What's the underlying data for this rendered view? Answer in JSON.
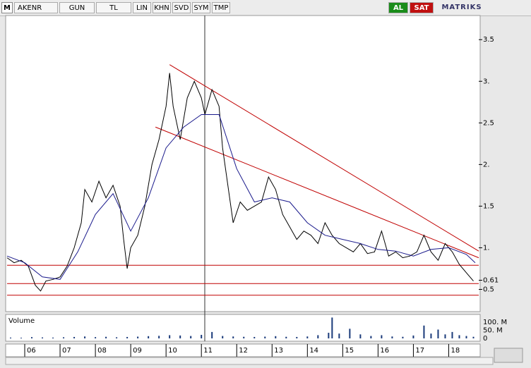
{
  "toolbar": {
    "logo": "M",
    "symbol": "AKENR",
    "buttons": [
      "GUN",
      "TL",
      "LIN",
      "KHN",
      "SVD",
      "SYM",
      "TMP"
    ],
    "buy": "AL",
    "sell": "SAT",
    "brand": "MATRIKS"
  },
  "chart_data": {
    "type": "line",
    "xlim": [
      2005.5,
      2018.85
    ],
    "xticks": [
      {
        "value": 2006,
        "label": "06"
      },
      {
        "value": 2007,
        "label": "07"
      },
      {
        "value": 2008,
        "label": "08"
      },
      {
        "value": 2009,
        "label": "09"
      },
      {
        "value": 2010,
        "label": "10"
      },
      {
        "value": 2011,
        "label": "11"
      },
      {
        "value": 2012,
        "label": "12"
      },
      {
        "value": 2013,
        "label": "13"
      },
      {
        "value": 2014,
        "label": "14"
      },
      {
        "value": 2015,
        "label": "15"
      },
      {
        "value": 2016,
        "label": "16"
      },
      {
        "value": 2017,
        "label": "17"
      },
      {
        "value": 2018,
        "label": "18"
      }
    ],
    "ylim": [
      0.25,
      3.79
    ],
    "yticks": [
      0.5,
      0.61,
      {
        "value": 1,
        "label": "1."
      },
      1.5,
      {
        "value": 2,
        "label": "2."
      },
      2.5,
      {
        "value": 3,
        "label": "3."
      },
      3.5
    ],
    "series": [
      {
        "color": "#000000",
        "x": [
          2005.5,
          2005.7,
          2005.9,
          2006.1,
          2006.3,
          2006.45,
          2006.6,
          2006.8,
          2007.0,
          2007.2,
          2007.4,
          2007.6,
          2007.7,
          2007.9,
          2008.1,
          2008.3,
          2008.5,
          2008.7,
          2008.8,
          2008.9,
          2009.0,
          2009.2,
          2009.4,
          2009.6,
          2009.8,
          2010.0,
          2010.1,
          2010.2,
          2010.3,
          2010.4,
          2010.6,
          2010.8,
          2011.0,
          2011.1,
          2011.3,
          2011.5,
          2011.6,
          2011.8,
          2011.9,
          2012.1,
          2012.3,
          2012.5,
          2012.7,
          2012.9,
          2013.1,
          2013.3,
          2013.5,
          2013.7,
          2013.9,
          2014.1,
          2014.3,
          2014.5,
          2014.7,
          2014.9,
          2015.1,
          2015.3,
          2015.5,
          2015.7,
          2015.9,
          2016.1,
          2016.3,
          2016.5,
          2016.7,
          2016.9,
          2017.1,
          2017.3,
          2017.5,
          2017.7,
          2017.9,
          2018.1,
          2018.3,
          2018.5,
          2018.7
        ],
        "values": [
          0.88,
          0.82,
          0.85,
          0.78,
          0.55,
          0.48,
          0.6,
          0.62,
          0.65,
          0.78,
          1.0,
          1.3,
          1.7,
          1.55,
          1.8,
          1.6,
          1.75,
          1.5,
          1.1,
          0.75,
          1.0,
          1.15,
          1.5,
          2.0,
          2.3,
          2.7,
          3.1,
          2.7,
          2.5,
          2.3,
          2.8,
          3.0,
          2.8,
          2.6,
          2.9,
          2.7,
          2.2,
          1.6,
          1.3,
          1.55,
          1.45,
          1.5,
          1.55,
          1.85,
          1.7,
          1.4,
          1.25,
          1.1,
          1.2,
          1.15,
          1.05,
          1.3,
          1.15,
          1.05,
          1.0,
          0.95,
          1.05,
          0.93,
          0.95,
          1.2,
          0.9,
          0.95,
          0.88,
          0.9,
          0.95,
          1.15,
          0.95,
          0.85,
          1.05,
          0.95,
          0.8,
          0.7,
          0.6
        ]
      },
      {
        "color": "#1a1a8c",
        "x": [
          2005.5,
          2006.0,
          2006.5,
          2007.0,
          2007.5,
          2008.0,
          2008.5,
          2009.0,
          2009.5,
          2010.0,
          2010.5,
          2011.0,
          2011.5,
          2012.0,
          2012.5,
          2013.0,
          2013.5,
          2014.0,
          2014.5,
          2015.0,
          2015.5,
          2016.0,
          2016.5,
          2017.0,
          2017.5,
          2018.0,
          2018.5,
          2018.75
        ],
        "values": [
          0.9,
          0.82,
          0.65,
          0.62,
          0.95,
          1.4,
          1.65,
          1.2,
          1.6,
          2.2,
          2.45,
          2.6,
          2.6,
          1.95,
          1.55,
          1.6,
          1.55,
          1.3,
          1.15,
          1.1,
          1.05,
          0.98,
          0.96,
          0.9,
          0.98,
          1.0,
          0.92,
          0.82
        ]
      }
    ],
    "hlines": [
      0.79,
      0.57,
      0.43
    ],
    "trendlines": [
      {
        "x": [
          2010.1,
          2018.85
        ],
        "y": [
          3.2,
          0.96
        ]
      },
      {
        "x": [
          2009.7,
          2018.85
        ],
        "y": [
          2.45,
          0.88
        ]
      }
    ],
    "volume": {
      "title": "Volume",
      "color": "#1a3a7a",
      "ylim": [
        0,
        145000000
      ],
      "yticks": [
        {
          "value": 0,
          "label": "0"
        },
        {
          "value": 50000000,
          "label": "50. M"
        },
        {
          "value": 100000000,
          "label": "100. M"
        }
      ],
      "x": [
        2005.6,
        2005.9,
        2006.2,
        2006.5,
        2006.8,
        2007.1,
        2007.4,
        2007.7,
        2008.0,
        2008.3,
        2008.6,
        2008.9,
        2009.2,
        2009.5,
        2009.8,
        2010.1,
        2010.4,
        2010.7,
        2011.0,
        2011.3,
        2011.6,
        2011.9,
        2012.2,
        2012.5,
        2012.8,
        2013.1,
        2013.4,
        2013.7,
        2014.0,
        2014.3,
        2014.6,
        2014.7,
        2014.9,
        2015.2,
        2015.5,
        2015.8,
        2016.1,
        2016.4,
        2016.7,
        2017.0,
        2017.3,
        2017.5,
        2017.7,
        2017.9,
        2018.1,
        2018.3,
        2018.5,
        2018.7
      ],
      "values": [
        5000000,
        4000000,
        8000000,
        6000000,
        5000000,
        7000000,
        9000000,
        12000000,
        8000000,
        10000000,
        7000000,
        9000000,
        11000000,
        14000000,
        16000000,
        20000000,
        18000000,
        15000000,
        22000000,
        40000000,
        15000000,
        12000000,
        10000000,
        9000000,
        11000000,
        14000000,
        10000000,
        9000000,
        12000000,
        20000000,
        35000000,
        130000000,
        30000000,
        60000000,
        25000000,
        15000000,
        20000000,
        12000000,
        10000000,
        18000000,
        80000000,
        30000000,
        55000000,
        25000000,
        40000000,
        20000000,
        15000000,
        10000000
      ]
    }
  }
}
